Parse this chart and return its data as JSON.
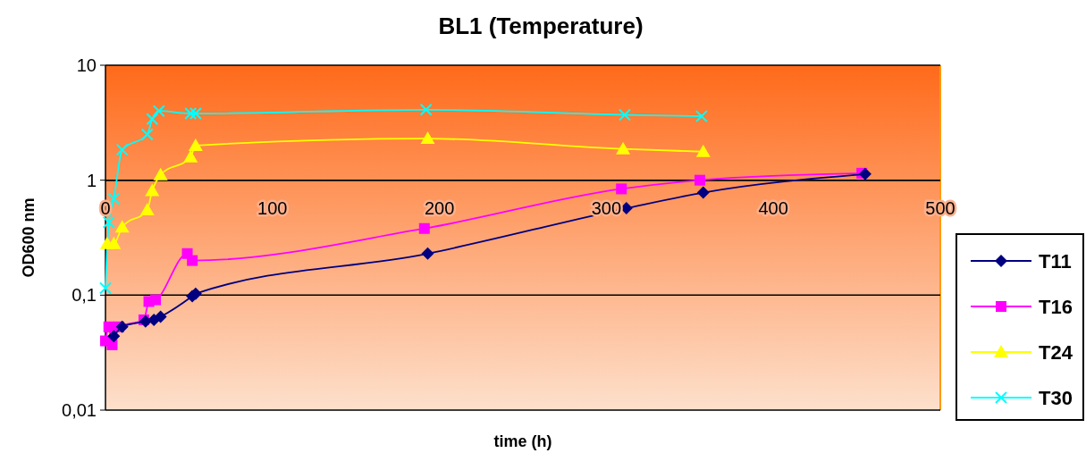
{
  "chart_data": {
    "type": "line",
    "title": "BL1 (Temperature)",
    "xlabel": "time (h)",
    "ylabel": "OD600 nm",
    "log": "y",
    "grid": "y",
    "legend": "right",
    "xlim": [
      0,
      500
    ],
    "xticks": [
      0,
      100,
      200,
      300,
      400,
      500
    ],
    "ylim": [
      0.01,
      10
    ],
    "yticks": [
      {
        "value": 0.01,
        "label": "0,01"
      },
      {
        "value": 0.1,
        "label": "0,1"
      },
      1,
      10
    ],
    "series": [
      {
        "name": "T11",
        "color": "#000080",
        "marker": "diamond",
        "x": [
          5,
          10,
          24,
          29,
          33,
          52,
          54,
          193,
          312,
          358,
          455
        ],
        "values": [
          0.044,
          0.053,
          0.059,
          0.061,
          0.065,
          0.098,
          0.103,
          0.23,
          0.57,
          0.78,
          1.13
        ]
      },
      {
        "name": "T16",
        "color": "#ff00ff",
        "marker": "square",
        "x": [
          0,
          2,
          4,
          8,
          23,
          26,
          30,
          49,
          52,
          191,
          309,
          356,
          453
        ],
        "values": [
          0.04,
          0.053,
          0.037,
          0.053,
          0.061,
          0.088,
          0.091,
          0.23,
          0.2,
          0.38,
          0.84,
          1.0,
          1.15
        ]
      },
      {
        "name": "T24",
        "color": "#ffff00",
        "marker": "triangle",
        "x": [
          1,
          5,
          10,
          25,
          28,
          33,
          51,
          54,
          193,
          310,
          358
        ],
        "values": [
          0.28,
          0.28,
          0.39,
          0.55,
          0.81,
          1.11,
          1.59,
          2.0,
          2.3,
          1.87,
          1.77
        ]
      },
      {
        "name": "T30",
        "color": "#00ffff",
        "marker": "cross",
        "x": [
          0,
          2,
          5,
          10,
          25,
          28,
          32,
          51,
          54,
          192,
          311,
          357
        ],
        "values": [
          0.115,
          0.43,
          0.69,
          1.84,
          2.5,
          3.4,
          4.0,
          3.8,
          3.8,
          4.1,
          3.7,
          3.6
        ]
      }
    ]
  }
}
